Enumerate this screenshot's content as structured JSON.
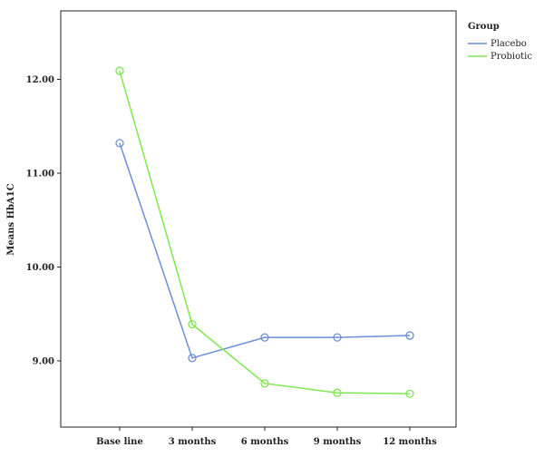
{
  "chart_data": {
    "type": "line",
    "title": "",
    "xlabel": "",
    "ylabel": "Means HbA1C",
    "categories": [
      "Base line",
      "3 months",
      "6 months",
      "9 months",
      "12 months"
    ],
    "yticks": [
      "9.00",
      "10.00",
      "11.00",
      "12.00"
    ],
    "ylim": [
      8.3,
      12.7
    ],
    "grid": false,
    "legend": {
      "title": "Group",
      "placement": "right"
    },
    "series": [
      {
        "name": "Placebo",
        "color": "#6b8fd8",
        "values": [
          11.32,
          9.03,
          9.25,
          9.25,
          9.27
        ]
      },
      {
        "name": "Probiotic",
        "color": "#7de84f",
        "values": [
          12.09,
          9.39,
          8.76,
          8.66,
          8.65
        ]
      }
    ]
  }
}
